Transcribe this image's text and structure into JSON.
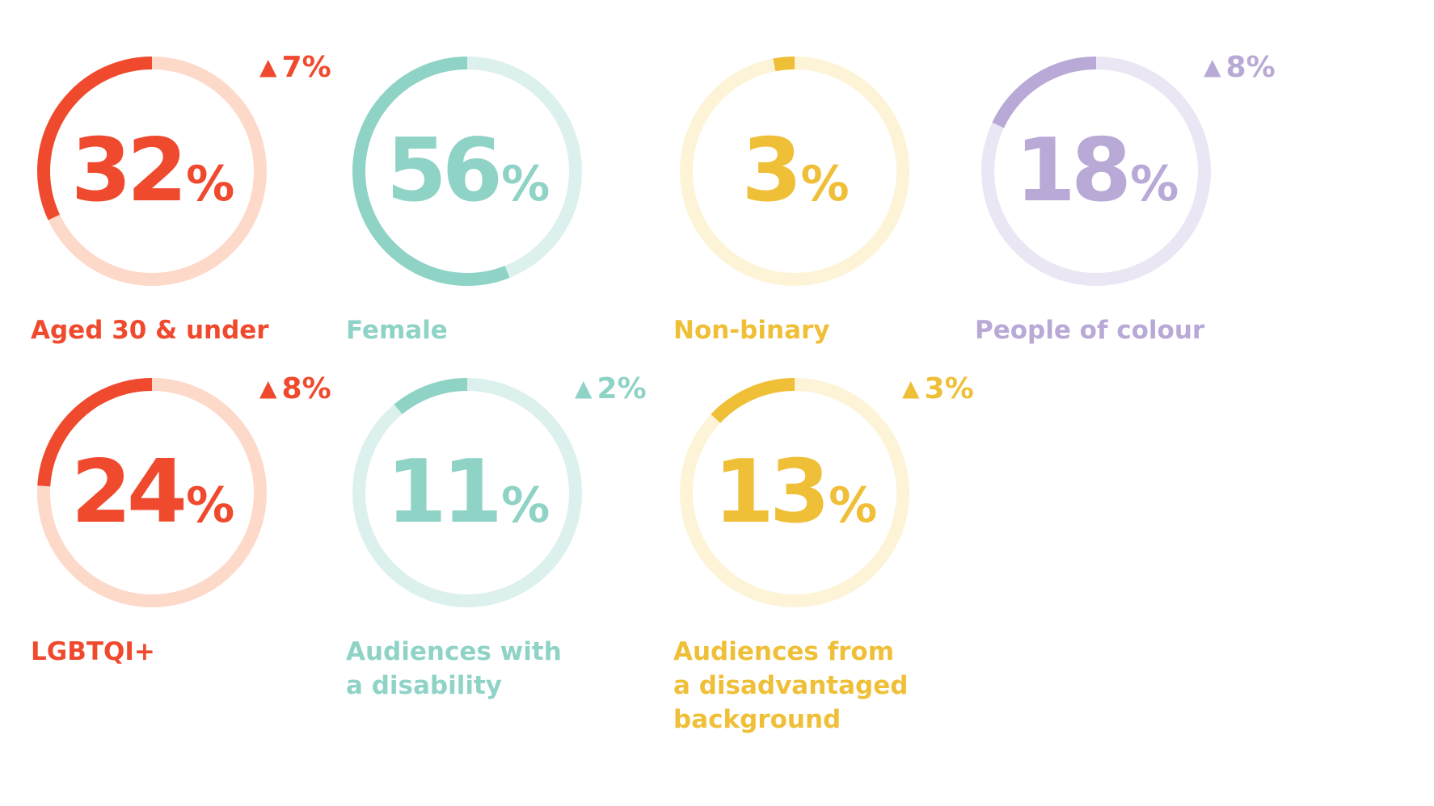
{
  "chart_data": [
    {
      "type": "donut",
      "value": 32,
      "unit": "%",
      "label_lines": [
        "Aged 30 & under"
      ],
      "change": "7%",
      "color": "#f04a2e",
      "track": "#fdd9ca"
    },
    {
      "type": "donut",
      "value": 56,
      "unit": "%",
      "label_lines": [
        "Female"
      ],
      "change": "",
      "color": "#8fd3c7",
      "track": "#dcf1ed"
    },
    {
      "type": "donut",
      "value": 3,
      "unit": "%",
      "label_lines": [
        "Non-binary"
      ],
      "change": "",
      "color": "#f0bf38",
      "track": "#fdf3d6"
    },
    {
      "type": "donut",
      "value": 18,
      "unit": "%",
      "label_lines": [
        "People of colour"
      ],
      "change": "8%",
      "color": "#b8a9d6",
      "track": "#ebe6f4"
    },
    {
      "type": "donut",
      "value": 24,
      "unit": "%",
      "label_lines": [
        "LGBTQI+"
      ],
      "change": "8%",
      "color": "#f04a2e",
      "track": "#fdd9ca"
    },
    {
      "type": "donut",
      "value": 11,
      "unit": "%",
      "label_lines": [
        "Audiences with",
        "a disability"
      ],
      "change": "2%",
      "color": "#8fd3c7",
      "track": "#dcf1ed"
    },
    {
      "type": "donut",
      "value": 13,
      "unit": "%",
      "label_lines": [
        "Audiences from",
        "a disadvantaged",
        "background"
      ],
      "change": "3%",
      "color": "#f0bf38",
      "track": "#fdf3d6"
    }
  ]
}
